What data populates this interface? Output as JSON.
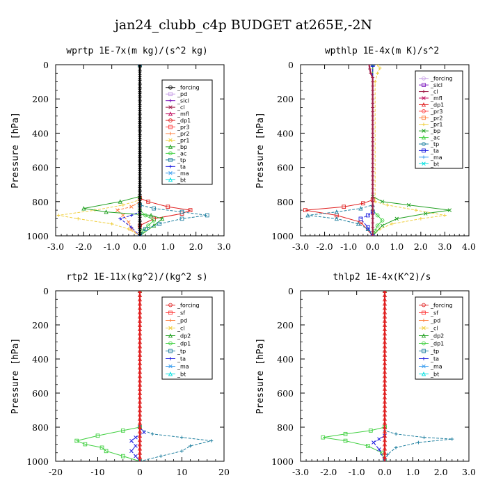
{
  "page_title": "jan24_clubb_c4p  BUDGET at265E,-2N",
  "chart_data": [
    {
      "type": "line",
      "title": "wprtp  1E-7x(m kg)/(s^2 kg)",
      "ylabel": "Pressure [hPa]",
      "xlim": [
        -3.0,
        3.0
      ],
      "ylim": [
        1000,
        0
      ],
      "xticks": [
        "-3.0",
        "-2.0",
        "-1.0",
        "0.0",
        "1.0",
        "2.0",
        "3.0"
      ],
      "xtick_values": [
        -3,
        -2,
        -1,
        0,
        1,
        2,
        3
      ],
      "yticks": [
        "0",
        "200",
        "400",
        "600",
        "800",
        "1000"
      ],
      "ytick_values": [
        0,
        200,
        400,
        600,
        800,
        1000
      ],
      "legend_position": "top-right",
      "legend": [
        "_forcing",
        "_pd",
        "_sicl",
        "_cl",
        "_mfl",
        "_dp1",
        "_pr3",
        "_pr2",
        "_pr1",
        "_bp",
        "_ac",
        "_tp",
        "_ta",
        "_ma",
        "_bt"
      ],
      "legend_colors": [
        "#000000",
        "#c8a0e6",
        "#8020c0",
        "#a0204a",
        "#c01060",
        "#e02020",
        "#ff4040",
        "#ff8040",
        "#f0d040",
        "#20a020",
        "#40d040",
        "#2080a0",
        "#2020e0",
        "#40a0f0",
        "#00e0e0"
      ],
      "series": [
        {
          "name": "_dp1",
          "color": "#e02020",
          "x": [
            0,
            0,
            0.3,
            1.0,
            1.8,
            1.5,
            0.5,
            0,
            0
          ],
          "y": [
            0,
            780,
            800,
            830,
            850,
            870,
            900,
            940,
            1000
          ]
        },
        {
          "name": "_pr1",
          "color": "#f0d040",
          "x": [
            0,
            0,
            -0.6,
            -1.6,
            -2.9,
            -2.2,
            -1.0,
            -0.4,
            0
          ],
          "y": [
            0,
            790,
            820,
            850,
            880,
            900,
            930,
            960,
            1000
          ]
        },
        {
          "name": "_pr2",
          "color": "#ff8040",
          "x": [
            0,
            0,
            -0.3,
            -0.8,
            -0.6,
            -0.4,
            -0.3,
            0
          ],
          "y": [
            0,
            800,
            830,
            850,
            880,
            920,
            960,
            1000
          ]
        },
        {
          "name": "_bp",
          "color": "#20a020",
          "x": [
            0,
            0,
            -0.7,
            -2.0,
            -1.2,
            0.4,
            0.8,
            0.5,
            0
          ],
          "y": [
            0,
            770,
            800,
            840,
            860,
            880,
            900,
            940,
            1000
          ]
        },
        {
          "name": "_ac",
          "color": "#40d040",
          "x": [
            0,
            0,
            0.2,
            0.5,
            0.3,
            0.1,
            0
          ],
          "y": [
            0,
            850,
            880,
            910,
            940,
            970,
            1000
          ]
        },
        {
          "name": "_tp",
          "color": "#2080a0",
          "x": [
            0,
            0,
            0.5,
            1.5,
            2.4,
            1.5,
            0.7,
            0.2,
            0
          ],
          "y": [
            0,
            820,
            840,
            860,
            880,
            900,
            930,
            960,
            1000
          ]
        },
        {
          "name": "_ta",
          "color": "#2020e0",
          "x": [
            0,
            0,
            -0.3,
            -0.7,
            -0.3,
            0
          ],
          "y": [
            0,
            860,
            880,
            900,
            950,
            1000
          ]
        },
        {
          "name": "_forcing",
          "color": "#000000",
          "x": [
            0,
            0,
            0,
            0,
            0,
            0,
            0,
            0,
            0,
            0,
            0,
            0,
            0,
            0,
            0,
            0,
            0,
            0,
            0,
            0,
            0,
            0,
            0,
            0,
            0,
            0,
            0,
            0,
            0,
            0,
            0,
            0,
            0,
            0,
            0,
            0,
            0,
            0,
            0,
            0,
            0
          ],
          "y": [
            0,
            25,
            50,
            75,
            100,
            125,
            150,
            175,
            200,
            225,
            250,
            275,
            300,
            325,
            350,
            375,
            400,
            425,
            450,
            475,
            500,
            525,
            550,
            575,
            600,
            625,
            650,
            675,
            700,
            725,
            750,
            775,
            800,
            825,
            850,
            875,
            900,
            925,
            950,
            975,
            1000
          ]
        }
      ]
    },
    {
      "type": "line",
      "title": "wpthlp  1E-4x(m K)/s^2",
      "ylabel": "Pressure [hPa]",
      "xlim": [
        -3.0,
        4.0
      ],
      "ylim": [
        1000,
        0
      ],
      "xticks": [
        "-3.0",
        "-2.0",
        "-1.0",
        "0.0",
        "1.0",
        "2.0",
        "3.0",
        "4.0"
      ],
      "xtick_values": [
        -3,
        -2,
        -1,
        0,
        1,
        2,
        3,
        4
      ],
      "yticks": [
        "0",
        "200",
        "400",
        "600",
        "800",
        "1000"
      ],
      "ytick_values": [
        0,
        200,
        400,
        600,
        800,
        1000
      ],
      "legend_position": "top-right",
      "legend": [
        "_forcing",
        "_sicl",
        "_cl",
        "_mfl",
        "_dp1",
        "_pr3",
        "_pr2",
        "_pr1",
        "_bp",
        "_ac",
        "_tp",
        "_ta",
        "_ma",
        "_bt"
      ],
      "legend_colors": [
        "#c8a0e6",
        "#8020c0",
        "#a0204a",
        "#c01060",
        "#e02020",
        "#ff4040",
        "#ff8040",
        "#f0d040",
        "#20a020",
        "#40d040",
        "#2080a0",
        "#2020e0",
        "#40a0f0",
        "#00e0e0"
      ],
      "series": [
        {
          "name": "_dp1",
          "color": "#e02020",
          "x": [
            0,
            0,
            -0.4,
            -1.2,
            -2.8,
            -1.5,
            -0.5,
            0
          ],
          "y": [
            0,
            790,
            810,
            830,
            850,
            880,
            920,
            1000
          ]
        },
        {
          "name": "_pr1",
          "color": "#f0d040",
          "x": [
            0.2,
            0.3,
            0.2,
            0.1,
            0.1,
            0.6,
            1.8,
            3.0,
            2.0,
            0.8,
            0.3,
            0
          ],
          "y": [
            0,
            20,
            50,
            100,
            800,
            820,
            850,
            880,
            900,
            930,
            960,
            1000
          ]
        },
        {
          "name": "_bp",
          "color": "#20a020",
          "x": [
            0,
            0,
            0.4,
            1.5,
            3.2,
            2.2,
            1.0,
            0.4,
            0
          ],
          "y": [
            0,
            770,
            800,
            820,
            850,
            870,
            900,
            940,
            1000
          ]
        },
        {
          "name": "_tp",
          "color": "#2080a0",
          "x": [
            0,
            0,
            -0.5,
            -1.5,
            -2.7,
            -1.5,
            -0.6,
            -0.2,
            0
          ],
          "y": [
            0,
            820,
            840,
            860,
            880,
            900,
            930,
            960,
            1000
          ]
        },
        {
          "name": "_ac",
          "color": "#40d040",
          "x": [
            0,
            0,
            0.2,
            0.4,
            0.2,
            0.1,
            0
          ],
          "y": [
            0,
            850,
            880,
            910,
            940,
            970,
            1000
          ]
        },
        {
          "name": "_ta",
          "color": "#2020e0",
          "x": [
            0,
            0,
            -0.2,
            -0.5,
            -0.2,
            0
          ],
          "y": [
            0,
            860,
            880,
            900,
            950,
            1000
          ]
        },
        {
          "name": "_cl",
          "color": "#a0204a",
          "x": [
            -0.15,
            -0.12,
            -0.08,
            0,
            0,
            0,
            0,
            0,
            0,
            0,
            0,
            0,
            0,
            0,
            0,
            0,
            0,
            0,
            0,
            0,
            0,
            0,
            0,
            0,
            0,
            0,
            0,
            0,
            0,
            0,
            0,
            0,
            0,
            0,
            0,
            0,
            0,
            0,
            0,
            0,
            0
          ],
          "y": [
            0,
            25,
            50,
            75,
            100,
            125,
            150,
            175,
            200,
            225,
            250,
            275,
            300,
            325,
            350,
            375,
            400,
            425,
            450,
            475,
            500,
            525,
            550,
            575,
            600,
            625,
            650,
            675,
            700,
            725,
            750,
            775,
            800,
            825,
            850,
            875,
            900,
            925,
            950,
            975,
            1000
          ]
        }
      ]
    },
    {
      "type": "line",
      "title": "rtp2  1E-11x(kg^2)/(kg^2 s)",
      "ylabel": "Pressure [hPa]",
      "xlim": [
        -20,
        20
      ],
      "ylim": [
        1000,
        0
      ],
      "xticks": [
        "-20",
        "-10",
        "0",
        "10",
        "20"
      ],
      "xtick_values": [
        -20,
        -10,
        0,
        10,
        20
      ],
      "yticks": [
        "0",
        "200",
        "400",
        "600",
        "800",
        "1000"
      ],
      "ytick_values": [
        0,
        200,
        400,
        600,
        800,
        1000
      ],
      "legend_position": "top-right",
      "legend": [
        "_forcing",
        "_sf",
        "_pd",
        "_cl",
        "_dp2",
        "_dp1",
        "_tp",
        "_ta",
        "_ma",
        "_bt"
      ],
      "legend_colors": [
        "#e02020",
        "#ff4040",
        "#ff8040",
        "#f0d040",
        "#20a020",
        "#40d040",
        "#2080a0",
        "#2020e0",
        "#40a0f0",
        "#00e0e0"
      ],
      "series": [
        {
          "name": "_dp1",
          "color": "#40d040",
          "x": [
            0,
            0,
            -4,
            -10,
            -15,
            -13,
            -9,
            -8,
            -4,
            0
          ],
          "y": [
            0,
            800,
            820,
            850,
            880,
            900,
            920,
            940,
            970,
            1000
          ]
        },
        {
          "name": "_tp",
          "color": "#2080a0",
          "x": [
            0,
            0,
            3,
            10,
            17,
            12,
            10,
            5,
            0
          ],
          "y": [
            0,
            810,
            840,
            860,
            880,
            910,
            940,
            970,
            1000
          ]
        },
        {
          "name": "_ta",
          "color": "#2020e0",
          "x": [
            0,
            0,
            1,
            -1,
            -2,
            -1,
            -2,
            -1,
            0
          ],
          "y": [
            0,
            800,
            830,
            860,
            880,
            910,
            940,
            970,
            1000
          ]
        },
        {
          "name": "_forcing",
          "color": "#e02020",
          "x": [
            0,
            0,
            0,
            0,
            0,
            0,
            0,
            0,
            0,
            0,
            0,
            0,
            0,
            0,
            0,
            0,
            0,
            0,
            0,
            0,
            0,
            0,
            0,
            0,
            0,
            0,
            0,
            0,
            0,
            0,
            0,
            0,
            0,
            0,
            0,
            0,
            0,
            0,
            0,
            0,
            0
          ],
          "y": [
            0,
            25,
            50,
            75,
            100,
            125,
            150,
            175,
            200,
            225,
            250,
            275,
            300,
            325,
            350,
            375,
            400,
            425,
            450,
            475,
            500,
            525,
            550,
            575,
            600,
            625,
            650,
            675,
            700,
            725,
            750,
            775,
            800,
            825,
            850,
            875,
            900,
            925,
            950,
            975,
            1000
          ]
        }
      ]
    },
    {
      "type": "line",
      "title": "thlp2  1E-4x(K^2)/s",
      "ylabel": "Pressure [hPa]",
      "xlim": [
        -3.0,
        3.0
      ],
      "ylim": [
        1000,
        0
      ],
      "xticks": [
        "-3.0",
        "-2.0",
        "-1.0",
        "0.0",
        "1.0",
        "2.0",
        "3.0"
      ],
      "xtick_values": [
        -3,
        -2,
        -1,
        0,
        1,
        2,
        3
      ],
      "yticks": [
        "0",
        "200",
        "400",
        "600",
        "800",
        "1000"
      ],
      "ytick_values": [
        0,
        200,
        400,
        600,
        800,
        1000
      ],
      "legend_position": "top-right",
      "legend": [
        "_forcing",
        "_sf",
        "_pd",
        "_cl",
        "_dp2",
        "_dp1",
        "_tp",
        "_ta",
        "_ma",
        "_bt"
      ],
      "legend_colors": [
        "#e02020",
        "#ff4040",
        "#ff8040",
        "#f0d040",
        "#20a020",
        "#40d040",
        "#2080a0",
        "#2020e0",
        "#40a0f0",
        "#00e0e0"
      ],
      "series": [
        {
          "name": "_dp1",
          "color": "#40d040",
          "x": [
            0,
            0,
            -0.5,
            -1.4,
            -2.2,
            -1.4,
            -0.6,
            -0.1,
            0
          ],
          "y": [
            0,
            800,
            820,
            840,
            860,
            880,
            910,
            950,
            1000
          ]
        },
        {
          "name": "_tp",
          "color": "#2080a0",
          "x": [
            0,
            0,
            0.4,
            1.4,
            2.4,
            1.2,
            0.4,
            0.1,
            0
          ],
          "y": [
            0,
            820,
            840,
            860,
            870,
            890,
            920,
            960,
            1000
          ]
        },
        {
          "name": "_ta",
          "color": "#2020e0",
          "x": [
            0,
            0,
            -0.2,
            -0.4,
            -0.2,
            0
          ],
          "y": [
            0,
            850,
            870,
            890,
            930,
            1000
          ]
        },
        {
          "name": "_forcing",
          "color": "#e02020",
          "x": [
            0,
            0,
            0,
            0,
            0,
            0,
            0,
            0,
            0,
            0,
            0,
            0,
            0,
            0,
            0,
            0,
            0,
            0,
            0,
            0,
            0,
            0,
            0,
            0,
            0,
            0,
            0,
            0,
            0,
            0,
            0,
            0,
            0,
            0,
            0,
            0,
            0,
            0,
            0,
            0,
            0
          ],
          "y": [
            0,
            25,
            50,
            75,
            100,
            125,
            150,
            175,
            200,
            225,
            250,
            275,
            300,
            325,
            350,
            375,
            400,
            425,
            450,
            475,
            500,
            525,
            550,
            575,
            600,
            625,
            650,
            675,
            700,
            725,
            750,
            775,
            800,
            825,
            850,
            875,
            900,
            925,
            950,
            975,
            1000
          ]
        }
      ]
    }
  ]
}
